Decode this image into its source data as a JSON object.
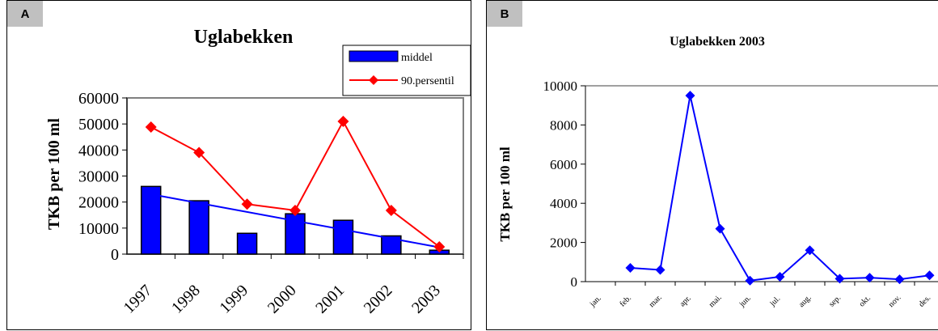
{
  "panels": [
    {
      "badge": "A"
    },
    {
      "badge": "B"
    }
  ],
  "chart_data": [
    {
      "type": "bar",
      "title": "Uglabekken",
      "ylabel": "TKB per 100 ml",
      "xlabel": "",
      "ylim": [
        0,
        60000
      ],
      "yticks": [
        "0",
        "10000",
        "20000",
        "30000",
        "40000",
        "50000",
        "60000"
      ],
      "categories": [
        "1997",
        "1998",
        "1999",
        "2000",
        "2001",
        "2002",
        "2003"
      ],
      "series": [
        {
          "name": "middel",
          "kind": "bar",
          "color": "#0000ff",
          "values": [
            26000,
            20500,
            8000,
            15500,
            13000,
            7000,
            1500
          ]
        },
        {
          "name": "90.persentil",
          "kind": "line",
          "color": "#ff0000",
          "values": [
            48800,
            39000,
            19200,
            16800,
            51000,
            16800,
            2800
          ]
        }
      ],
      "trendline": {
        "color": "#0000ff",
        "start": 23000,
        "end": 2600
      },
      "legend": "top-right",
      "grid": false
    },
    {
      "type": "line",
      "title": "Uglabekken 2003",
      "ylabel": "TKB per 100 ml",
      "xlabel": "",
      "ylim": [
        0,
        10000
      ],
      "yticks": [
        "0",
        "2000",
        "4000",
        "6000",
        "8000",
        "10000"
      ],
      "categories": [
        "jan.",
        "feb.",
        "mar.",
        "apr.",
        "mai.",
        "jun.",
        "jul.",
        "aug.",
        "sep.",
        "okt.",
        "nov.",
        "des."
      ],
      "series": [
        {
          "color": "#0000ff",
          "values": [
            null,
            700,
            600,
            9500,
            2700,
            50,
            250,
            1600,
            150,
            200,
            120,
            320
          ]
        }
      ],
      "grid": false
    }
  ]
}
